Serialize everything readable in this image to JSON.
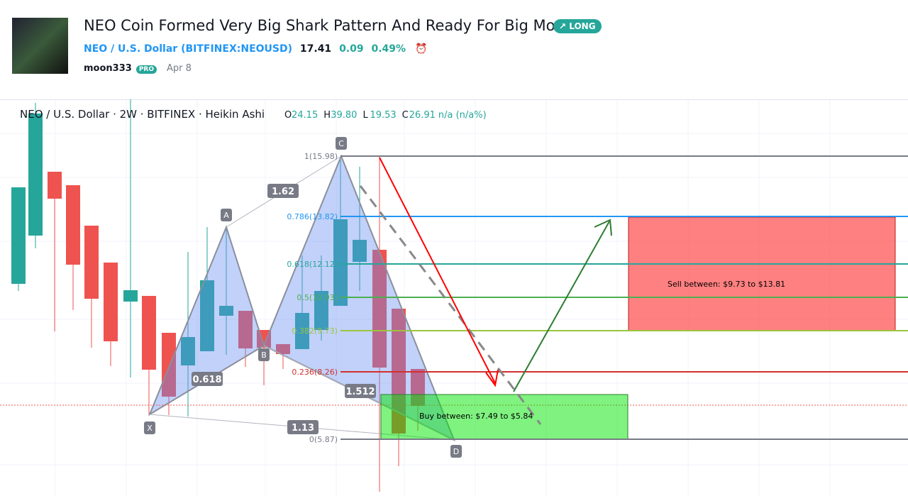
{
  "header": {
    "title": "NEO Coin Formed Very Big Shark Pattern And Ready For Big Move",
    "tag": "LONG",
    "symbol": "NEO / U.S. Dollar",
    "exchange": "(BITFINEX:NEOUSD)",
    "price": "17.41",
    "change": "0.09",
    "change_pct": "0.49%",
    "author": "moon333",
    "badge": "PRO",
    "date": "Apr 8"
  },
  "chart": {
    "legend": "NEO / U.S. Dollar · 2W · BITFINEX · Heikin Ashi",
    "ohlc": [
      {
        "key": "O",
        "value": "24.15"
      },
      {
        "key": "H",
        "value": "39.80"
      },
      {
        "key": "L",
        "value": "19.53"
      },
      {
        "key": "C",
        "value": "26.91"
      }
    ],
    "change": "n/a (n/a%)",
    "fib_levels": [
      "1(15.98)",
      "0.786(13.82)",
      "0.618(12.12)",
      "0.5(10.93)",
      "0.382(9.73)",
      "0.236(8.26)",
      "0(5.87)"
    ],
    "points": [
      "X",
      "A",
      "B",
      "C",
      "D"
    ],
    "ratios": [
      "0.618",
      "1.62",
      "1.512",
      "1.13"
    ],
    "sell_box": "Sell between: $9.73 to $13.81",
    "buy_box": "Buy between: $7.49 to $5.84"
  }
}
